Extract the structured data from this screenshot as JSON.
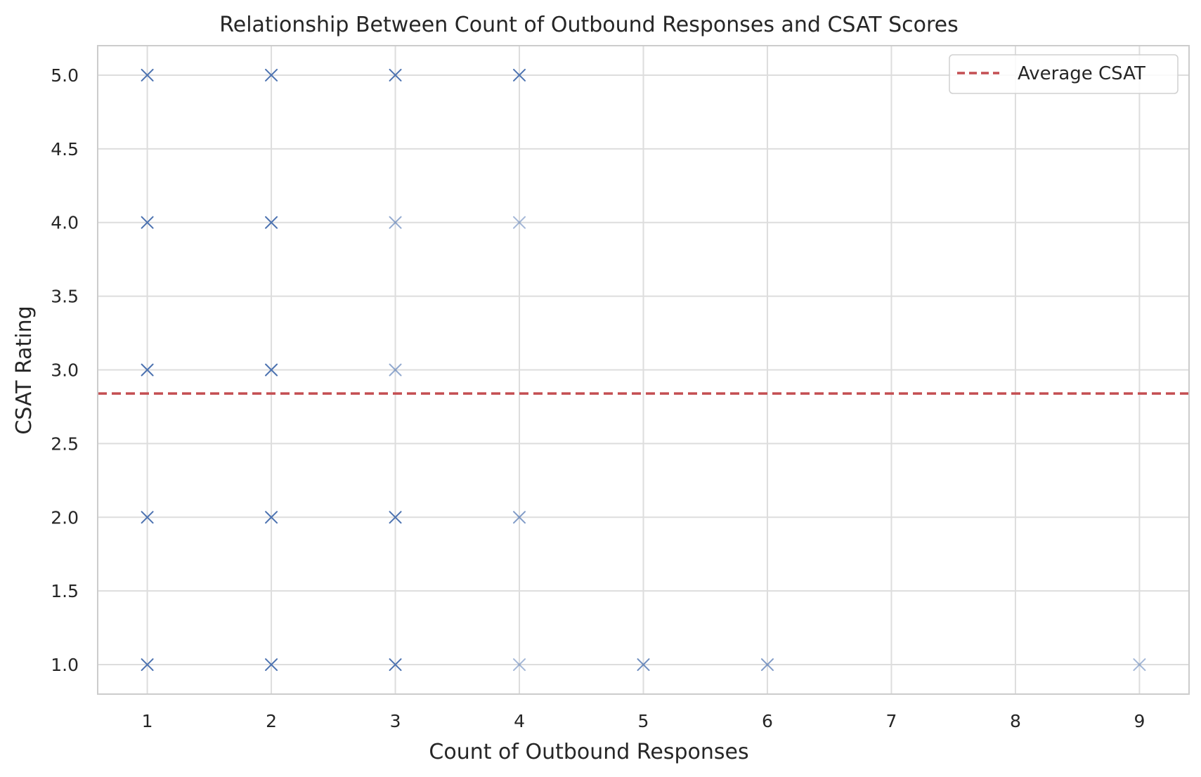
{
  "chart_data": {
    "type": "scatter",
    "title": "Relationship Between Count of Outbound Responses and CSAT Scores",
    "xlabel": "Count of Outbound Responses",
    "ylabel": "CSAT Rating",
    "xlim": [
      0.6,
      9.4
    ],
    "ylim": [
      0.8,
      5.2
    ],
    "x_ticks": [
      1,
      2,
      3,
      4,
      5,
      6,
      7,
      8,
      9
    ],
    "y_ticks": [
      1.0,
      1.5,
      2.0,
      2.5,
      3.0,
      3.5,
      4.0,
      4.5,
      5.0
    ],
    "x_tick_labels": [
      "1",
      "2",
      "3",
      "4",
      "5",
      "6",
      "7",
      "8",
      "9"
    ],
    "y_tick_labels": [
      "1.0",
      "1.5",
      "2.0",
      "2.5",
      "3.0",
      "3.5",
      "4.0",
      "4.5",
      "5.0"
    ],
    "grid": true,
    "marker": "x",
    "series": [
      {
        "color": "#4c72b0",
        "points": [
          {
            "x": 1,
            "y": 5,
            "opacity": 1.0
          },
          {
            "x": 1,
            "y": 4,
            "opacity": 1.0
          },
          {
            "x": 1,
            "y": 3,
            "opacity": 1.0
          },
          {
            "x": 1,
            "y": 2,
            "opacity": 1.0
          },
          {
            "x": 1,
            "y": 1,
            "opacity": 1.0
          },
          {
            "x": 2,
            "y": 5,
            "opacity": 1.0
          },
          {
            "x": 2,
            "y": 4,
            "opacity": 1.0
          },
          {
            "x": 2,
            "y": 3,
            "opacity": 1.0
          },
          {
            "x": 2,
            "y": 2,
            "opacity": 1.0
          },
          {
            "x": 2,
            "y": 1,
            "opacity": 1.0
          },
          {
            "x": 3,
            "y": 5,
            "opacity": 1.0
          },
          {
            "x": 3,
            "y": 4,
            "opacity": 0.6
          },
          {
            "x": 3,
            "y": 3,
            "opacity": 0.6
          },
          {
            "x": 3,
            "y": 2,
            "opacity": 1.0
          },
          {
            "x": 3,
            "y": 1,
            "opacity": 1.0
          },
          {
            "x": 4,
            "y": 5,
            "opacity": 1.0
          },
          {
            "x": 4,
            "y": 4,
            "opacity": 0.5
          },
          {
            "x": 4,
            "y": 2,
            "opacity": 0.7
          },
          {
            "x": 4,
            "y": 1,
            "opacity": 0.5
          },
          {
            "x": 5,
            "y": 1,
            "opacity": 0.8
          },
          {
            "x": 6,
            "y": 1,
            "opacity": 0.7
          },
          {
            "x": 9,
            "y": 1,
            "opacity": 0.5
          }
        ]
      }
    ],
    "reference_line": {
      "name": "Average CSAT",
      "y": 2.84,
      "color": "#c44e52",
      "style": "dashed"
    },
    "legend": {
      "placement": "top-right",
      "entries": [
        "Average CSAT"
      ]
    }
  }
}
